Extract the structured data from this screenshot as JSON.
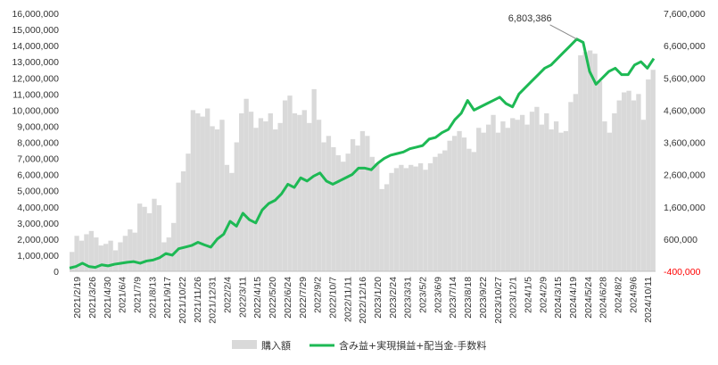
{
  "chart_data": {
    "type": "bar+line",
    "title": "",
    "x_labels": [
      "2021/2/19",
      "2021/3/26",
      "2021/4/30",
      "2021/6/4",
      "2021/7/9",
      "2021/8/13",
      "2021/9/17",
      "2021/10/22",
      "2021/11/26",
      "2021/12/31",
      "2022/2/4",
      "2022/3/11",
      "2022/4/15",
      "2022/5/20",
      "2022/6/24",
      "2022/7/29",
      "2022/9/2",
      "2022/10/7",
      "2022/11/11",
      "2022/12/16",
      "2023/1/20",
      "2023/2/24",
      "2023/3/31",
      "2023/5/2",
      "2023/6/9",
      "2023/7/14",
      "2023/8/18",
      "2023/9/22",
      "2023/10/27",
      "2023/12/1",
      "2024/1/5",
      "2024/2/9",
      "2024/3/15",
      "2024/4/19",
      "2024/5/24",
      "2024/6/28",
      "2024/8/2",
      "2024/9/6",
      "2024/10/11"
    ],
    "y_left": {
      "min": 0,
      "max": 16000000,
      "step": 1000000,
      "tick_labels": [
        "0",
        "1,000,000",
        "2,000,000",
        "3,000,000",
        "4,000,000",
        "5,000,000",
        "6,000,000",
        "7,000,000",
        "8,000,000",
        "9,000,000",
        "10,000,000",
        "11,000,000",
        "12,000,000",
        "13,000,000",
        "14,000,000",
        "15,000,000",
        "16,000,000"
      ]
    },
    "y_right": {
      "min": -400000,
      "max": 7600000,
      "step": 1000000,
      "tick_labels": [
        "-400,000",
        "600,000",
        "1,600,000",
        "2,600,000",
        "3,600,000",
        "4,600,000",
        "5,600,000",
        "6,600,000",
        "7,600,000"
      ]
    },
    "series": [
      {
        "name": "購入額",
        "axis": "left",
        "kind": "bar",
        "color": "#d9d9d9",
        "values": [
          1200000,
          2200000,
          1900000,
          2300000,
          2500000,
          2100000,
          1600000,
          1700000,
          1900000,
          1300000,
          1800000,
          2200000,
          2600000,
          2400000,
          4200000,
          4000000,
          3600000,
          4500000,
          4100000,
          1800000,
          2100000,
          3000000,
          5500000,
          6200000,
          7300000,
          10000000,
          9800000,
          9600000,
          10100000,
          9000000,
          8800000,
          9400000,
          6600000,
          6100000,
          8000000,
          9800000,
          10700000,
          9900000,
          8900000,
          9500000,
          9300000,
          9800000,
          8800000,
          9200000,
          10600000,
          10900000,
          9800000,
          9700000,
          10000000,
          9200000,
          11300000,
          9400000,
          8000000,
          8400000,
          7700000,
          7200000,
          6800000,
          7300000,
          8200000,
          7800000,
          8700000,
          8400000,
          7100000,
          6700000,
          5100000,
          5400000,
          6100000,
          6400000,
          6600000,
          6400000,
          6600000,
          6500000,
          6700000,
          6300000,
          6700000,
          7100000,
          7300000,
          7500000,
          8100000,
          8400000,
          8700000,
          8300000,
          7600000,
          7400000,
          8900000,
          8600000,
          9100000,
          9700000,
          8600000,
          9300000,
          8900000,
          9500000,
          9400000,
          9700000,
          9100000,
          9900000,
          10200000,
          9100000,
          9800000,
          8800000,
          9300000,
          8600000,
          8700000,
          10500000,
          11000000,
          13400000,
          13600000,
          13700000,
          13500000,
          11800000,
          9300000,
          8600000,
          9800000,
          10600000,
          11100000,
          11200000,
          10600000,
          11000000,
          9400000,
          11900000,
          12500000
        ],
        "pattern": "dense weekly bars"
      },
      {
        "name": "含み益+実現損益+配当金-手数料",
        "axis": "right",
        "kind": "line",
        "color": "#1db954",
        "values": [
          -300000,
          -250000,
          -150000,
          -250000,
          -280000,
          -200000,
          -230000,
          -180000,
          -150000,
          -120000,
          -100000,
          -150000,
          -80000,
          -50000,
          20000,
          150000,
          100000,
          300000,
          350000,
          400000,
          500000,
          420000,
          350000,
          600000,
          750000,
          1150000,
          1000000,
          1400000,
          1200000,
          1100000,
          1500000,
          1700000,
          1800000,
          2000000,
          2300000,
          2200000,
          2500000,
          2400000,
          2550000,
          2650000,
          2400000,
          2300000,
          2400000,
          2500000,
          2600000,
          2800000,
          2800000,
          2750000,
          2950000,
          3100000,
          3200000,
          3250000,
          3300000,
          3400000,
          3450000,
          3500000,
          3700000,
          3750000,
          3900000,
          4000000,
          4300000,
          4500000,
          4900000,
          4600000,
          4700000,
          4800000,
          4900000,
          5000000,
          4800000,
          4700000,
          5100000,
          5300000,
          5500000,
          5700000,
          5900000,
          6000000,
          6200000,
          6400000,
          6600000,
          6803386,
          6700000,
          5800000,
          5400000,
          5600000,
          5800000,
          5900000,
          5700000,
          5700000,
          6000000,
          6100000,
          5900000,
          6200000
        ],
        "annotation": {
          "label": "6,803,386",
          "value": 6803386
        }
      }
    ],
    "legend": {
      "placement": "bottom-center",
      "entries": [
        "購入額",
        "含み益+実現損益+配当金-手数料"
      ]
    },
    "grid": false
  }
}
